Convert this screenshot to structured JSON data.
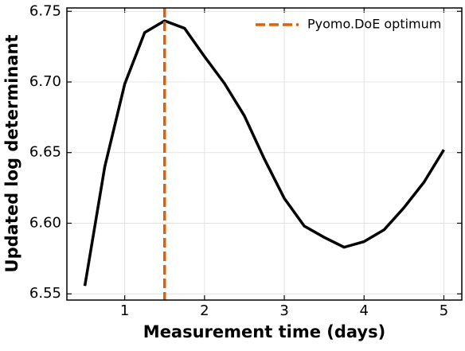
{
  "chart_data": {
    "type": "line",
    "xlabel": "Measurement time (days)",
    "ylabel": "Updated log determinant",
    "x": [
      0.5,
      0.75,
      1,
      1.25,
      1.5,
      1.75,
      2,
      2.25,
      2.5,
      2.75,
      3,
      3.25,
      3.5,
      3.75,
      4,
      4.25,
      4.5,
      4.75,
      5
    ],
    "series": [
      {
        "name": null,
        "color": "#000000",
        "values": [
          6.5556,
          6.64,
          6.6986,
          6.735,
          6.7433,
          6.738,
          6.718,
          6.699,
          6.676,
          6.6455,
          6.6176,
          6.598,
          6.59,
          6.583,
          6.587,
          6.5953,
          6.611,
          6.629,
          6.652
        ]
      }
    ],
    "vlines": [
      {
        "x": 1.5,
        "name": "Pyomo.DoE optimum",
        "color": "#d9620a"
      }
    ],
    "xlim": [
      0.275,
      5.225
    ],
    "ylim": [
      6.5456,
      6.7524
    ],
    "xticks": [
      1,
      2,
      3,
      4,
      5
    ],
    "yticks": [
      6.55,
      {
        "value": 6.6,
        "label": "6.60"
      },
      6.65,
      {
        "value": 6.7,
        "label": "6.70"
      },
      6.75
    ],
    "grid": true,
    "legend": "upper right"
  }
}
